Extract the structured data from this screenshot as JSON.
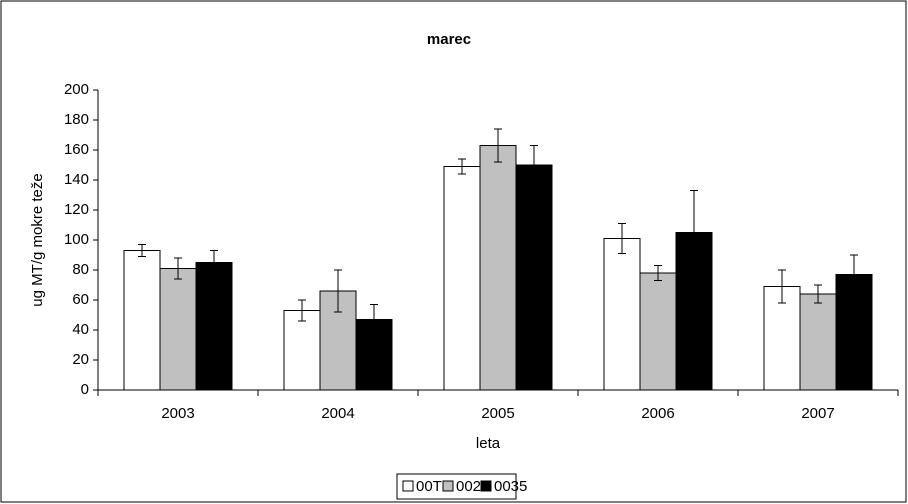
{
  "chart_data": {
    "type": "bar",
    "title": "marec",
    "x_label": "leta",
    "y_label": "ug MT/g mokre teže",
    "categories": [
      "2003",
      "2004",
      "2005",
      "2006",
      "2007"
    ],
    "series": [
      {
        "name": "00TM",
        "color": "#ffffff",
        "values": [
          93,
          53,
          149,
          101,
          69
        ],
        "errors": [
          4,
          7,
          5,
          10,
          11
        ]
      },
      {
        "name": "0024",
        "color": "#c0c0c0",
        "values": [
          81,
          66,
          163,
          78,
          64
        ],
        "errors": [
          7,
          14,
          11,
          5,
          6
        ]
      },
      {
        "name": "0035",
        "color": "#000000",
        "values": [
          85,
          47,
          150,
          105,
          77
        ],
        "errors": [
          8,
          10,
          13,
          28,
          13
        ]
      }
    ],
    "ylim": [
      0,
      200
    ],
    "yticks": [
      0,
      20,
      40,
      60,
      80,
      100,
      120,
      140,
      160,
      180,
      200
    ],
    "grid": false,
    "legend": "bottom"
  }
}
